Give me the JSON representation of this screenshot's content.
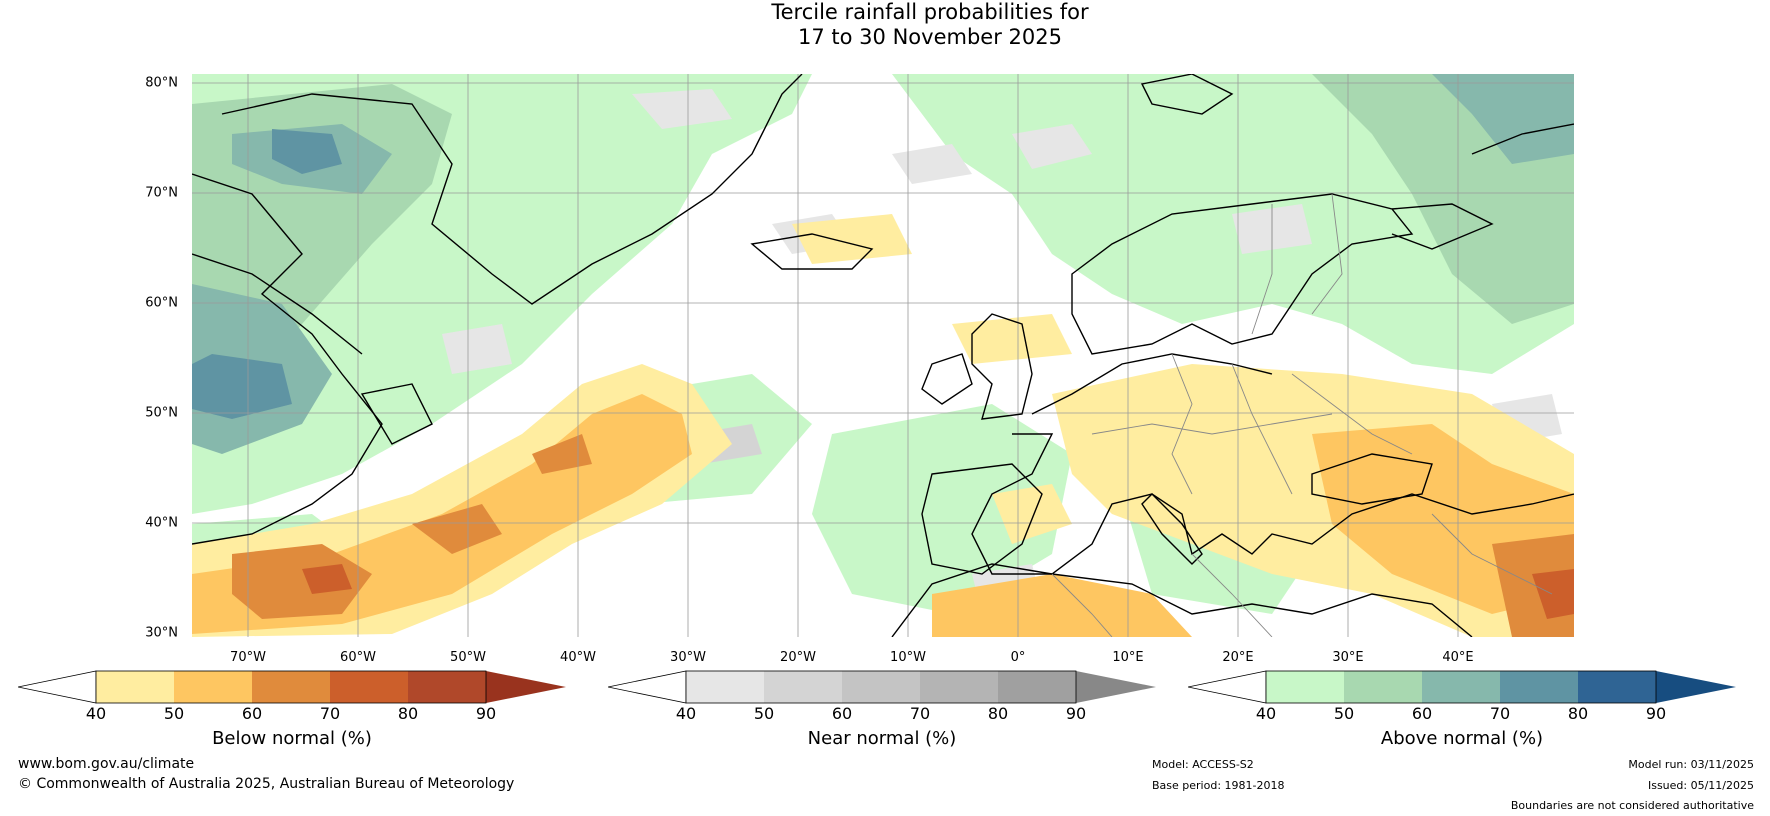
{
  "title": {
    "line1": "Tercile rainfall probabilities for",
    "line2": "17 to 30 November 2025"
  },
  "map": {
    "lat_labels": [
      "80°N",
      "70°N",
      "60°N",
      "50°N",
      "40°N",
      "30°N"
    ],
    "lon_labels": [
      "70°W",
      "60°W",
      "50°W",
      "40°W",
      "30°W",
      "20°W",
      "10°W",
      "0°",
      "10°E",
      "20°E",
      "30°E",
      "40°E"
    ]
  },
  "legends": [
    {
      "title": "Below normal (%)",
      "ticks": [
        "40",
        "50",
        "60",
        "70",
        "80",
        "90"
      ],
      "colors": [
        "#ffeda0",
        "#fec661",
        "#e08b3c",
        "#cc5f2b",
        "#b0482a"
      ],
      "extend_color": "#99331e"
    },
    {
      "title": "Near normal (%)",
      "ticks": [
        "40",
        "50",
        "60",
        "70",
        "80",
        "90"
      ],
      "colors": [
        "#e6e6e6",
        "#d4d4d4",
        "#c4c4c4",
        "#b4b4b4",
        "#a0a0a0"
      ],
      "extend_color": "#888888"
    },
    {
      "title": "Above normal (%)",
      "ticks": [
        "40",
        "50",
        "60",
        "70",
        "80",
        "90"
      ],
      "colors": [
        "#c8f7c8",
        "#a8d8b0",
        "#86b8ac",
        "#5f94a3",
        "#2f6494"
      ],
      "extend_color": "#174d80"
    }
  ],
  "footer": {
    "website": "www.bom.gov.au/climate",
    "copyright": "© Commonwealth of Australia 2025, Australian Bureau of Meteorology",
    "model": "Model: ACCESS-S2",
    "base_period": "Base period: 1981-2018",
    "model_run": "Model run: 03/11/2025",
    "issued": "Issued: 05/11/2025",
    "disclaimer": "Boundaries are not considered authoritative"
  }
}
